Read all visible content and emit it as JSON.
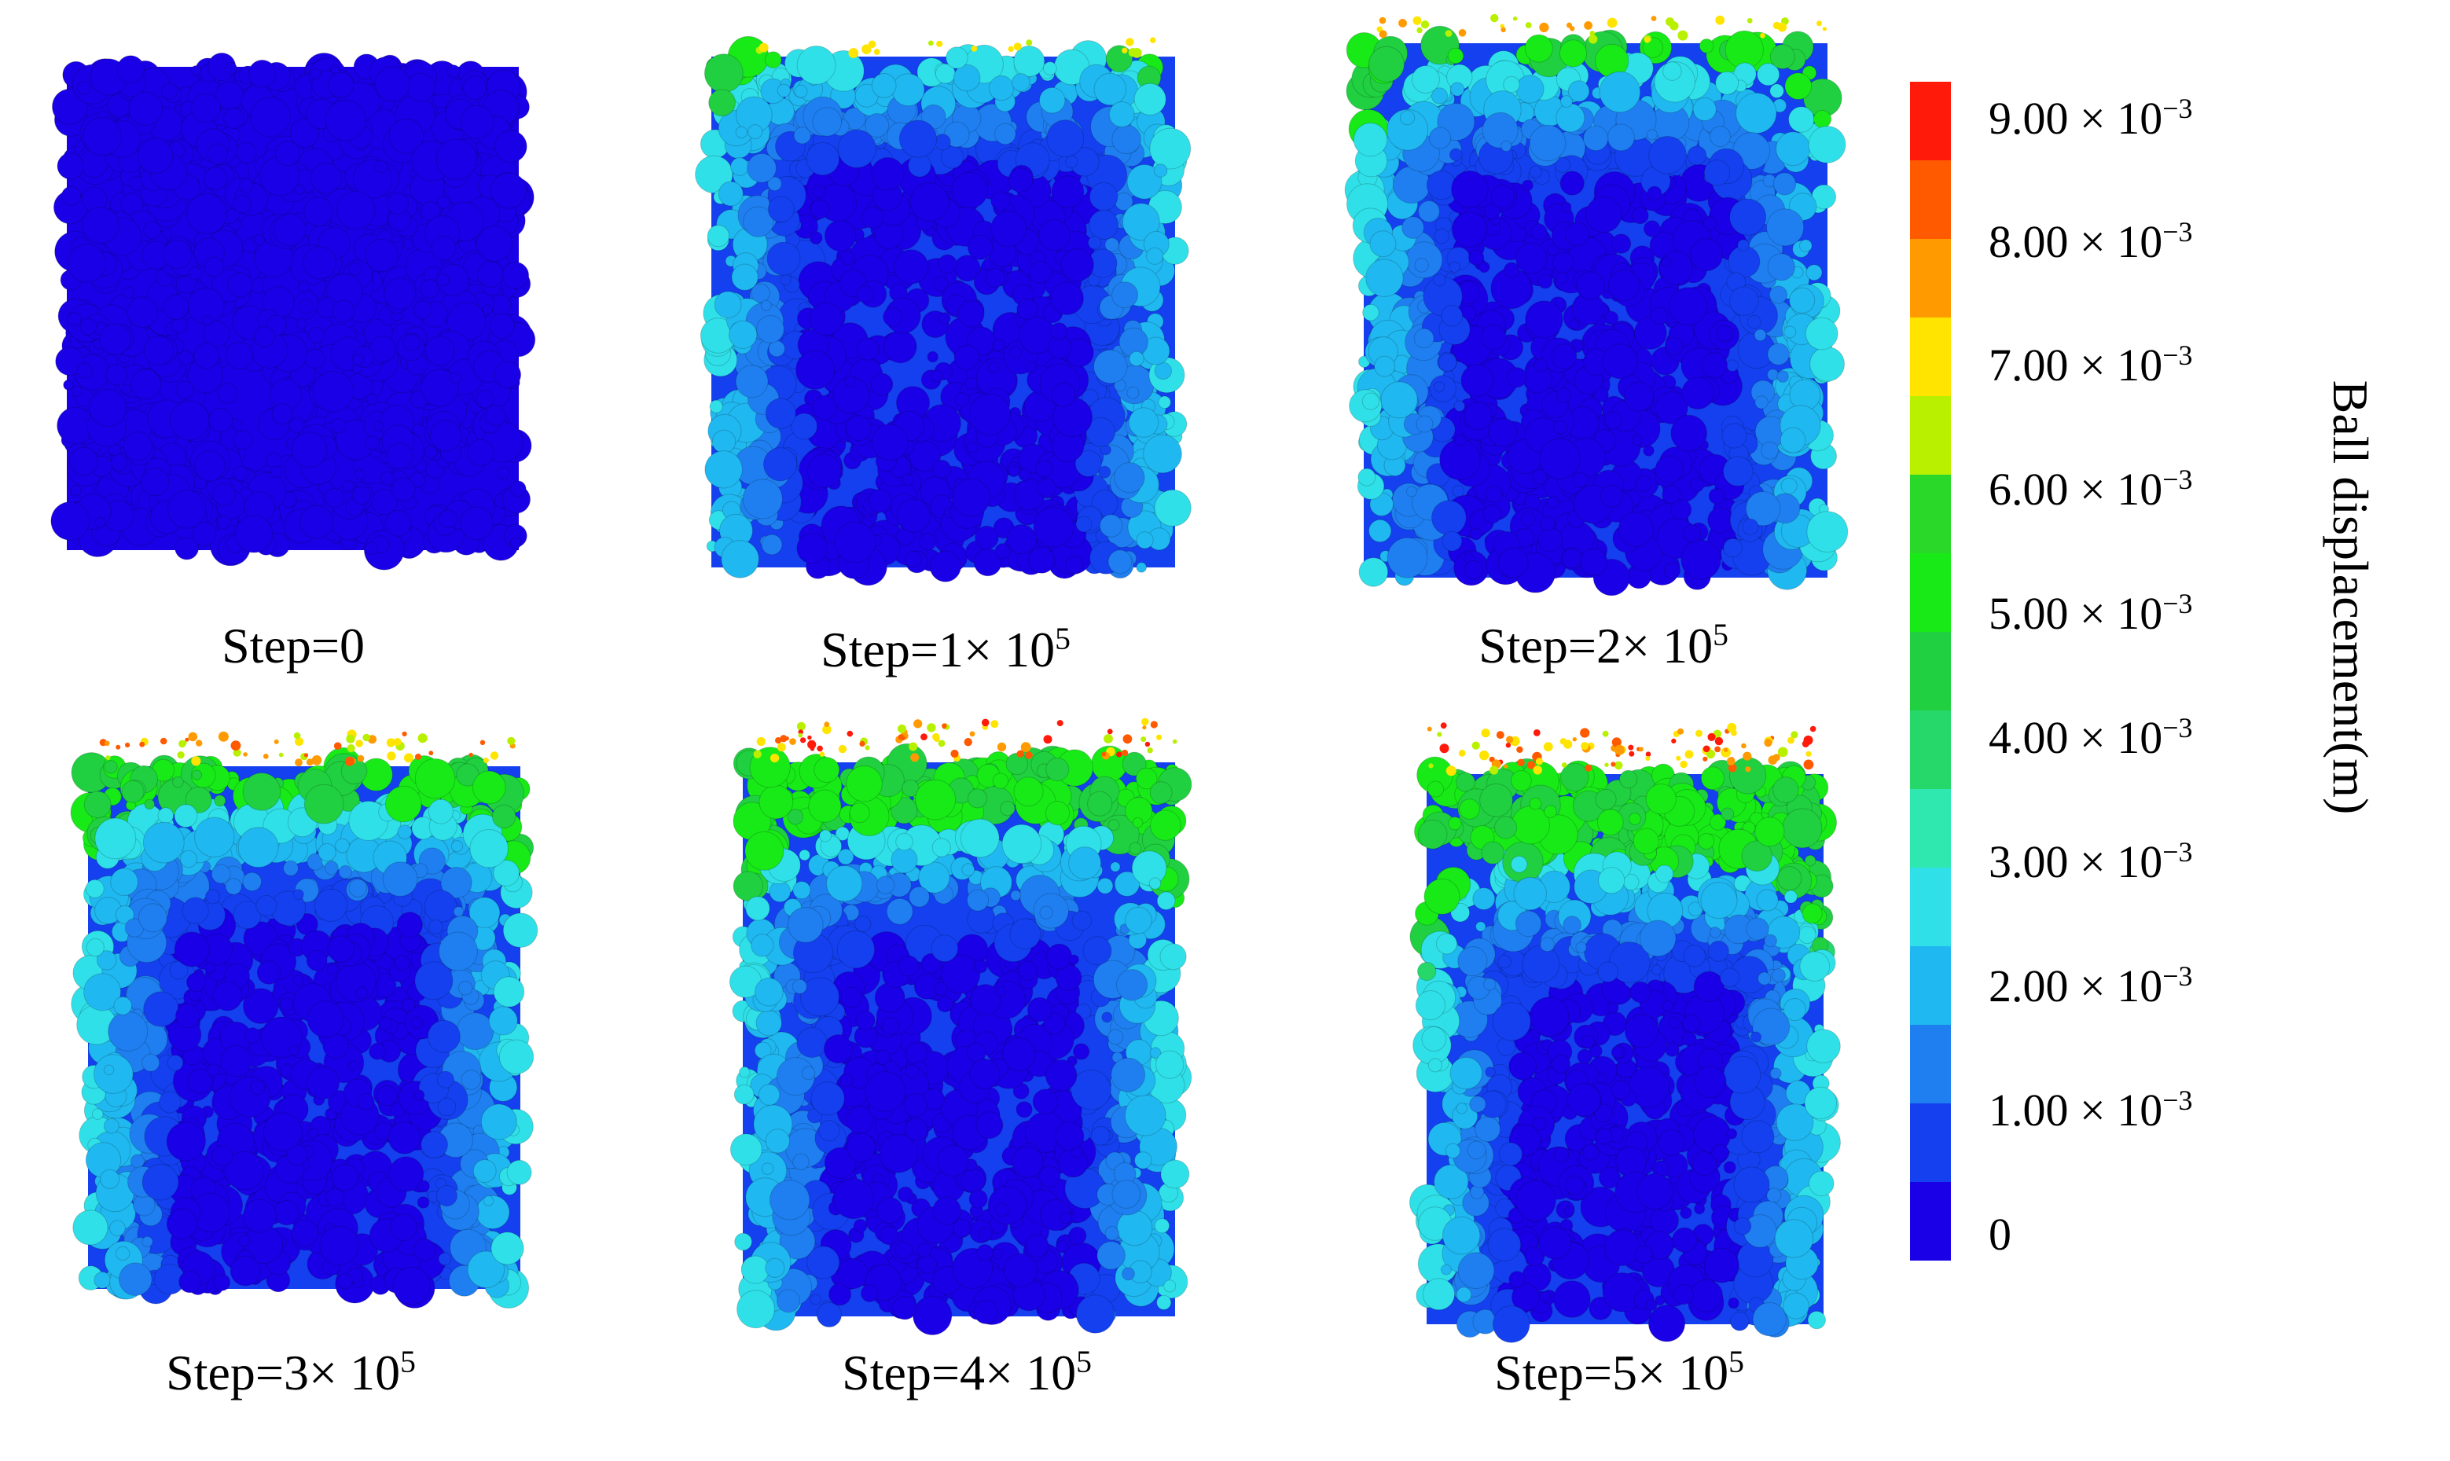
{
  "panels": [
    {
      "caption": "Step=0",
      "exponent": "",
      "active": false,
      "level": 0
    },
    {
      "caption": "Step=1× 10",
      "exponent": "5",
      "active": true,
      "level": 1
    },
    {
      "caption": "Step=2× 10",
      "exponent": "5",
      "active": true,
      "level": 2
    },
    {
      "caption": "Step=3× 10",
      "exponent": "5",
      "active": true,
      "level": 3
    },
    {
      "caption": "Step=4× 10",
      "exponent": "5",
      "active": true,
      "level": 4
    },
    {
      "caption": "Step=5× 10",
      "exponent": "5",
      "active": true,
      "level": 5
    }
  ],
  "colorbar": {
    "title": "Ball displacement(m)",
    "colors": [
      "#ff1a0a",
      "#ff5a00",
      "#ff9a00",
      "#ffe400",
      "#b8f000",
      "#2ad82a",
      "#18ea18",
      "#20d040",
      "#26d86a",
      "#2ee8b0",
      "#30e0e8",
      "#20b8f0",
      "#1f7ff0",
      "#1440f0",
      "#1a00e6"
    ],
    "ticks": [
      {
        "mantissa": "9.00",
        "sep": " × 10",
        "exp": "−3"
      },
      {
        "mantissa": "8.00",
        "sep": " × 10",
        "exp": "−3"
      },
      {
        "mantissa": "7.00",
        "sep": " × 10",
        "exp": "−3"
      },
      {
        "mantissa": "6.00",
        "sep": " × 10",
        "exp": "−3"
      },
      {
        "mantissa": "5.00",
        "sep": " × 10",
        "exp": "−3"
      },
      {
        "mantissa": "4.00",
        "sep": " × 10",
        "exp": "−3"
      },
      {
        "mantissa": "3.00",
        "sep": " × 10",
        "exp": "−3"
      },
      {
        "mantissa": "2.00",
        "sep": " × 10",
        "exp": "−3"
      },
      {
        "mantissa": "1.00",
        "sep": " × 10",
        "exp": "−3"
      },
      {
        "mantissa": "0",
        "sep": "",
        "exp": ""
      }
    ]
  }
}
